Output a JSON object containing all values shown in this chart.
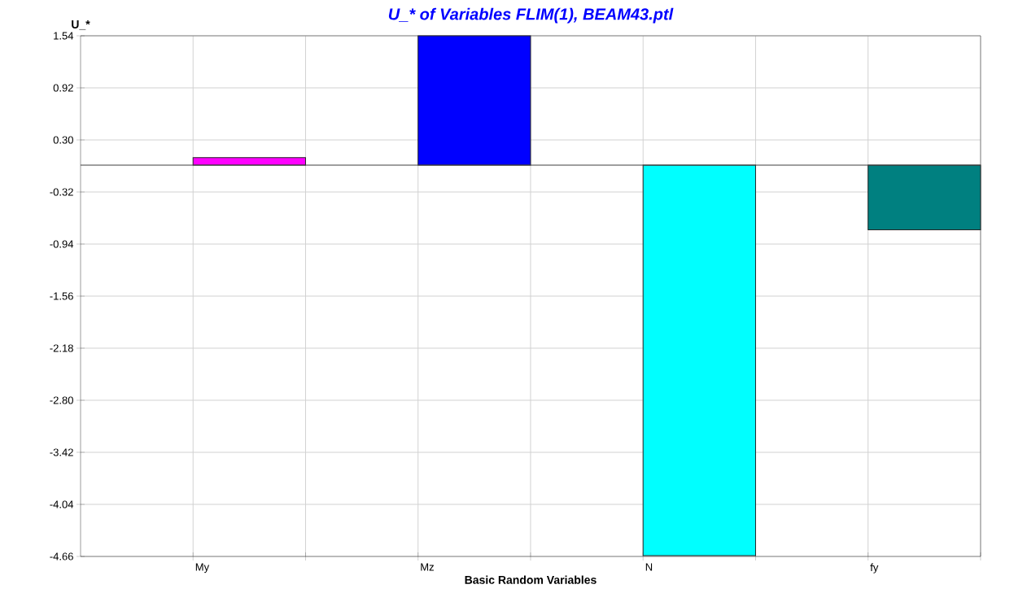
{
  "chart_data": {
    "type": "bar",
    "title": "U_* of Variables FLIM(1), BEAM43.ptl",
    "xlabel": "Basic Random Variables",
    "ylabel": "U_*",
    "categories": [
      "My",
      "Mz",
      "N",
      "fy"
    ],
    "values": [
      0.09,
      1.54,
      -4.65,
      -0.77
    ],
    "colors": [
      "#ff00ff",
      "#0000ff",
      "#00ffff",
      "#008080"
    ],
    "ylim": [
      -4.66,
      1.54
    ],
    "yticks": [
      1.54,
      0.92,
      {
        "value": 0.3,
        "label": "0.30"
      },
      -0.32,
      -0.94,
      -1.56,
      -2.18,
      {
        "value": -2.8,
        "label": "-2.80"
      },
      -3.42,
      -4.04,
      -4.66
    ],
    "grid": true
  }
}
